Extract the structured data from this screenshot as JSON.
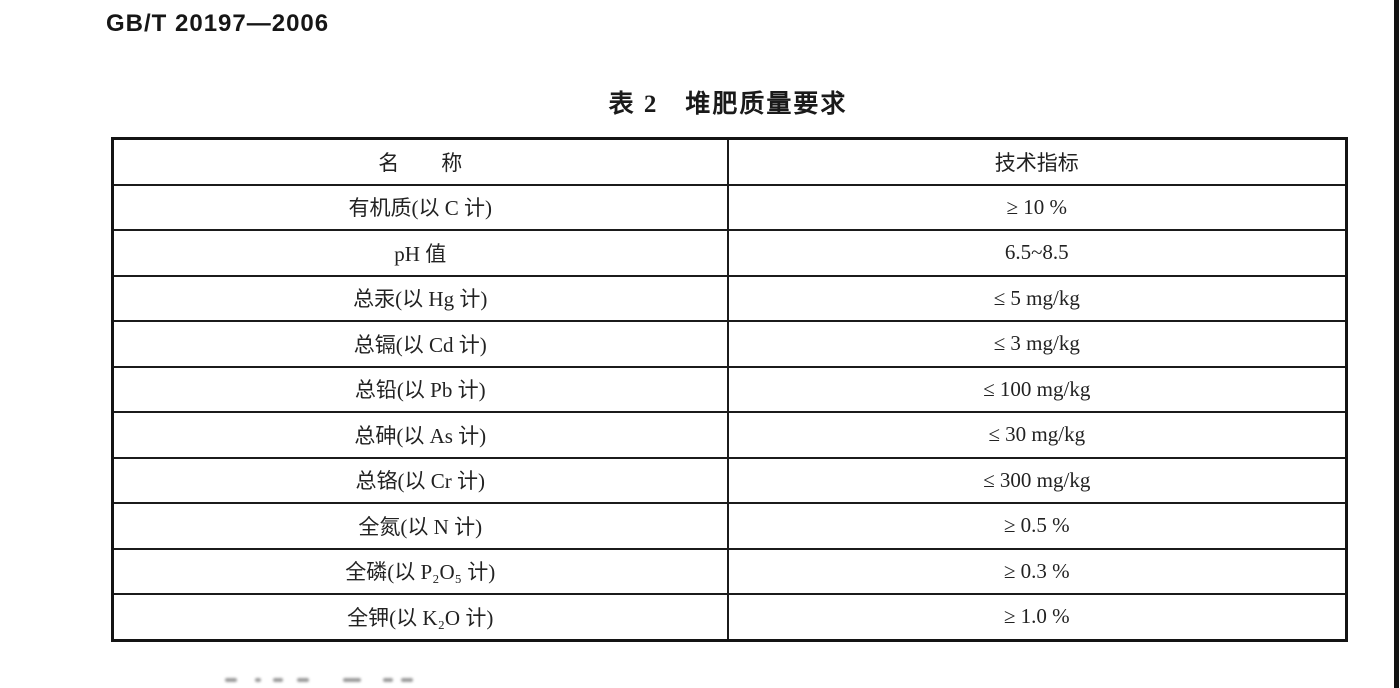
{
  "page": {
    "standard_code": "GB/T 20197—2006"
  },
  "table": {
    "title": "表 2　堆肥质量要求",
    "columns": {
      "name": "名　　称",
      "indicator": "技术指标"
    },
    "rows": [
      {
        "name": "有机质(以 C 计)",
        "value": "≥ 10 %"
      },
      {
        "name": "pH 值",
        "value": "6.5~8.5"
      },
      {
        "name": "总汞(以 Hg 计)",
        "value": "≤ 5 mg/kg"
      },
      {
        "name": "总镉(以 Cd 计)",
        "value": "≤ 3 mg/kg"
      },
      {
        "name": "总铅(以 Pb 计)",
        "value": "≤ 100 mg/kg"
      },
      {
        "name": "总砷(以 As 计)",
        "value": "≤ 30 mg/kg"
      },
      {
        "name": "总铬(以 Cr 计)",
        "value": "≤ 300 mg/kg"
      },
      {
        "name": "全氮(以 N 计)",
        "value": "≥ 0.5 %"
      },
      {
        "name": "全磷(以 P₂O₅ 计)",
        "value": "≥ 0.3 %"
      },
      {
        "name": "全钾(以 K₂O 计)",
        "value": "≥ 1.0 %"
      }
    ]
  },
  "colors": {
    "text": "#1c1c1c",
    "border": "#1b1b1b",
    "background": "#ffffff"
  }
}
